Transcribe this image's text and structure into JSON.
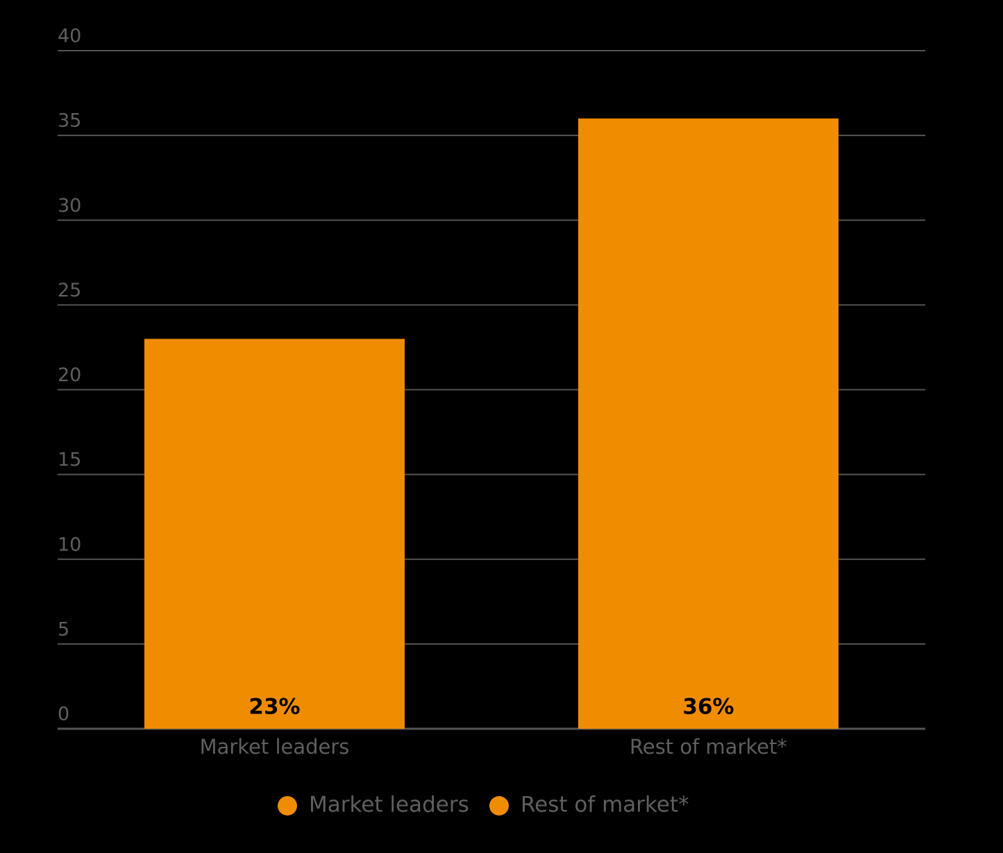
{
  "chart_data": {
    "type": "bar",
    "categories": [
      "Market leaders",
      "Rest of market*"
    ],
    "values": [
      23,
      36
    ],
    "value_labels": [
      "23%",
      "36%"
    ],
    "color": "#f08c00",
    "ylim": [
      0,
      40
    ],
    "yticks": [
      0,
      5,
      10,
      15,
      20,
      25,
      30,
      35,
      40
    ],
    "grid": true,
    "legend": "bottom"
  }
}
